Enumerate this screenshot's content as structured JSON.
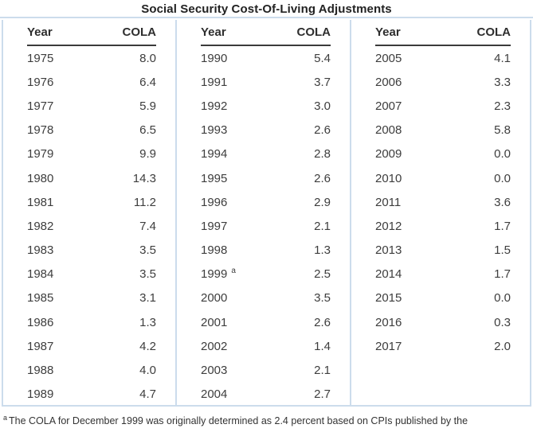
{
  "title": "Social Security Cost-Of-Living Adjustments",
  "columns": {
    "year": "Year",
    "cola": "COLA"
  },
  "panels": [
    {
      "rows": [
        {
          "year": "1975",
          "cola": "8.0"
        },
        {
          "year": "1976",
          "cola": "6.4"
        },
        {
          "year": "1977",
          "cola": "5.9"
        },
        {
          "year": "1978",
          "cola": "6.5"
        },
        {
          "year": "1979",
          "cola": "9.9"
        },
        {
          "year": "1980",
          "cola": "14.3"
        },
        {
          "year": "1981",
          "cola": "11.2"
        },
        {
          "year": "1982",
          "cola": "7.4"
        },
        {
          "year": "1983",
          "cola": "3.5"
        },
        {
          "year": "1984",
          "cola": "3.5"
        },
        {
          "year": "1985",
          "cola": "3.1"
        },
        {
          "year": "1986",
          "cola": "1.3"
        },
        {
          "year": "1987",
          "cola": "4.2"
        },
        {
          "year": "1988",
          "cola": "4.0"
        },
        {
          "year": "1989",
          "cola": "4.7"
        }
      ]
    },
    {
      "rows": [
        {
          "year": "1990",
          "cola": "5.4"
        },
        {
          "year": "1991",
          "cola": "3.7"
        },
        {
          "year": "1992",
          "cola": "3.0"
        },
        {
          "year": "1993",
          "cola": "2.6"
        },
        {
          "year": "1994",
          "cola": "2.8"
        },
        {
          "year": "1995",
          "cola": "2.6"
        },
        {
          "year": "1996",
          "cola": "2.9"
        },
        {
          "year": "1997",
          "cola": "2.1"
        },
        {
          "year": "1998",
          "cola": "1.3"
        },
        {
          "year": "1999",
          "cola": "2.5",
          "note_marker": "a"
        },
        {
          "year": "2000",
          "cola": "3.5"
        },
        {
          "year": "2001",
          "cola": "2.6"
        },
        {
          "year": "2002",
          "cola": "1.4"
        },
        {
          "year": "2003",
          "cola": "2.1"
        },
        {
          "year": "2004",
          "cola": "2.7"
        }
      ]
    },
    {
      "rows": [
        {
          "year": "2005",
          "cola": "4.1"
        },
        {
          "year": "2006",
          "cola": "3.3"
        },
        {
          "year": "2007",
          "cola": "2.3"
        },
        {
          "year": "2008",
          "cola": "5.8"
        },
        {
          "year": "2009",
          "cola": "0.0"
        },
        {
          "year": "2010",
          "cola": "0.0"
        },
        {
          "year": "2011",
          "cola": "3.6"
        },
        {
          "year": "2012",
          "cola": "1.7"
        },
        {
          "year": "2013",
          "cola": "1.5"
        },
        {
          "year": "2014",
          "cola": "1.7"
        },
        {
          "year": "2015",
          "cola": "0.0"
        },
        {
          "year": "2016",
          "cola": "0.3"
        },
        {
          "year": "2017",
          "cola": "2.0"
        }
      ]
    }
  ],
  "footnote": {
    "marker": "a",
    "text": "The COLA for December 1999 was originally determined as 2.4 percent based on CPIs published by the"
  },
  "colors": {
    "table_border": "#ccdcec",
    "header_underline": "#3a3a3a",
    "body_text": "#3d3d3d",
    "title_text": "#222222"
  },
  "chart_data": {
    "type": "table",
    "title": "Social Security Cost-Of-Living Adjustments",
    "columns": [
      "Year",
      "COLA"
    ],
    "x": [
      1975,
      1976,
      1977,
      1978,
      1979,
      1980,
      1981,
      1982,
      1983,
      1984,
      1985,
      1986,
      1987,
      1988,
      1989,
      1990,
      1991,
      1992,
      1993,
      1994,
      1995,
      1996,
      1997,
      1998,
      1999,
      2000,
      2001,
      2002,
      2003,
      2004,
      2005,
      2006,
      2007,
      2008,
      2009,
      2010,
      2011,
      2012,
      2013,
      2014,
      2015,
      2016,
      2017
    ],
    "series": [
      {
        "name": "COLA (percent)",
        "values": [
          8.0,
          6.4,
          5.9,
          6.5,
          9.9,
          14.3,
          11.2,
          7.4,
          3.5,
          3.5,
          3.1,
          1.3,
          4.2,
          4.0,
          4.7,
          5.4,
          3.7,
          3.0,
          2.6,
          2.8,
          2.6,
          2.9,
          2.1,
          1.3,
          2.5,
          3.5,
          2.6,
          1.4,
          2.1,
          2.7,
          4.1,
          3.3,
          2.3,
          5.8,
          0.0,
          0.0,
          3.6,
          1.7,
          1.5,
          1.7,
          0.0,
          0.3,
          2.0
        ]
      }
    ],
    "annotations": [
      "1999 value carries footnote marker a"
    ]
  }
}
